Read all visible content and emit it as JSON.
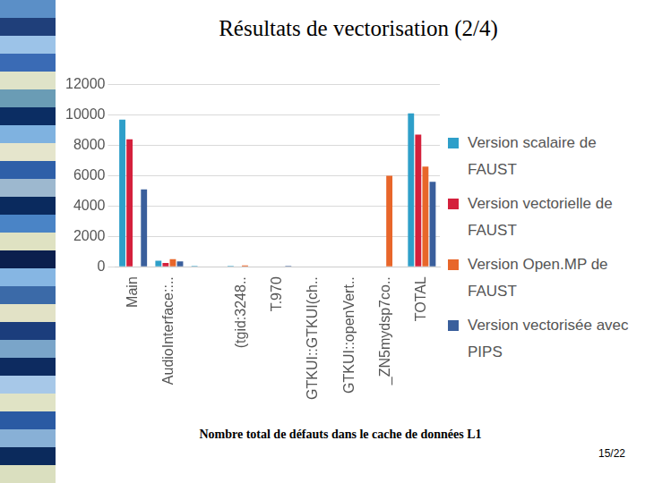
{
  "slide": {
    "page_number": "15/22"
  },
  "chart_data": {
    "type": "bar",
    "title": "Résultats de vectorisation (2/4)",
    "caption": "Nombre total de défauts dans le cache de données L1",
    "categories": [
      "Main",
      "AudioInterface::..",
      null,
      "(tgid:3248..",
      "T.970",
      "GTKUI::GTKUI(ch..",
      "GTKUI::openVert..",
      "_ZN5mydsp7co..",
      "TOTAL"
    ],
    "series": [
      {
        "name": "Version scalaire de FAUST",
        "color": "#2e9fc9",
        "values": [
          9700,
          400,
          50,
          50,
          0,
          0,
          0,
          0,
          10100
        ]
      },
      {
        "name": "Version vectorielle de FAUST",
        "color": "#d4203c",
        "values": [
          8400,
          250,
          30,
          0,
          0,
          0,
          0,
          0,
          8700
        ]
      },
      {
        "name": "Version Open.MP de FAUST",
        "color": "#e8662a",
        "values": [
          0,
          500,
          0,
          80,
          0,
          0,
          0,
          6000,
          6600
        ]
      },
      {
        "name": "Version vectorisée avec  PIPS",
        "color": "#3a5f9c",
        "values": [
          5100,
          350,
          0,
          0,
          50,
          0,
          0,
          0,
          5600
        ]
      }
    ],
    "ylim": [
      0,
      12000
    ],
    "yticks": [
      0,
      2000,
      4000,
      6000,
      8000,
      10000,
      12000
    ],
    "grid": true,
    "legend": "right"
  }
}
